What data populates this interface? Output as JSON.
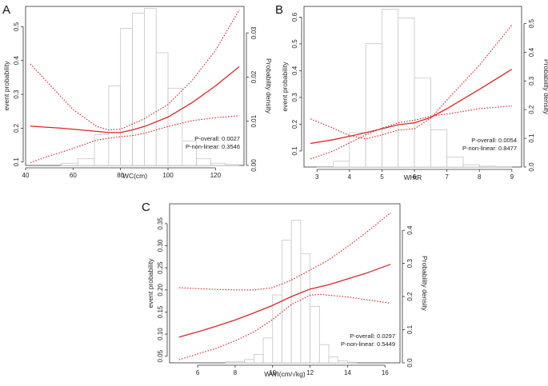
{
  "chart_data": [
    {
      "type": "line",
      "panel": "A",
      "xlabel": "WC(cm)",
      "ylabel": "event probability",
      "y2label": "Probability density",
      "xlim": [
        40,
        132
      ],
      "ylim": [
        0.09,
        0.56
      ],
      "y2lim": [
        0.0,
        0.036
      ],
      "xticks": [
        40,
        60,
        80,
        100,
        120
      ],
      "yticks": [
        0.1,
        0.2,
        0.3,
        0.4,
        0.5
      ],
      "y2ticks": [
        0.0,
        0.01,
        0.02,
        0.03
      ],
      "ytick_labels": [
        "0.1",
        "0.2",
        "0.3",
        "0.4",
        "0.5"
      ],
      "y2tick_labels": [
        "0.00",
        "0.01",
        "0.02",
        "0.03"
      ],
      "histogram": {
        "bin_edges": [
          55,
          62,
          69,
          75,
          80,
          85,
          90,
          95,
          100,
          106,
          112,
          118,
          124,
          130
        ],
        "density": [
          0.0005,
          0.0015,
          0.007,
          0.018,
          0.031,
          0.0345,
          0.0355,
          0.0255,
          0.0175,
          0.0055,
          0.0015,
          0.0005,
          0.0002
        ]
      },
      "series": [
        {
          "name": "fit",
          "x": [
            42,
            55,
            65,
            75,
            80,
            85,
            90,
            100,
            110,
            120,
            130
          ],
          "y": [
            0.206,
            0.2,
            0.194,
            0.187,
            0.187,
            0.195,
            0.205,
            0.233,
            0.275,
            0.325,
            0.382
          ]
        },
        {
          "name": "upper",
          "x": [
            42,
            50,
            60,
            70,
            75,
            80,
            85,
            90,
            100,
            110,
            120,
            130
          ],
          "y": [
            0.39,
            0.33,
            0.255,
            0.205,
            0.195,
            0.197,
            0.212,
            0.228,
            0.27,
            0.34,
            0.43,
            0.55
          ]
        },
        {
          "name": "lower",
          "x": [
            42,
            50,
            60,
            70,
            75,
            80,
            85,
            90,
            100,
            110,
            120,
            130
          ],
          "y": [
            0.098,
            0.118,
            0.14,
            0.165,
            0.17,
            0.175,
            0.178,
            0.185,
            0.205,
            0.222,
            0.231,
            0.237
          ]
        }
      ],
      "annotations": [
        "P-overall: 0.0027",
        "P-non-linear: 0.3546"
      ]
    },
    {
      "type": "line",
      "panel": "B",
      "xlabel": "WHtR",
      "ylabel": "event probability",
      "y2label": "Probability density",
      "xlim": [
        2.6,
        9.3
      ],
      "ylim": [
        0.04,
        0.64
      ],
      "y2lim": [
        0.0,
        0.56
      ],
      "xticks": [
        3,
        4,
        5,
        6,
        7,
        8,
        9
      ],
      "yticks": [
        0.1,
        0.2,
        0.3,
        0.4,
        0.5,
        0.6
      ],
      "y2ticks": [
        0.0,
        0.1,
        0.2,
        0.3,
        0.4,
        0.5
      ],
      "ytick_labels": [
        "0.1",
        "0.2",
        "0.3",
        "0.4",
        "0.5",
        "0.6"
      ],
      "y2tick_labels": [
        "0.0",
        "0.1",
        "0.2",
        "0.3",
        "0.4",
        "0.5"
      ],
      "histogram": {
        "bin_edges": [
          3.0,
          3.5,
          4.0,
          4.5,
          5.0,
          5.5,
          6.0,
          6.5,
          7.0,
          7.5,
          8.0,
          8.5,
          9.0
        ],
        "density": [
          0.002,
          0.02,
          0.12,
          0.43,
          0.55,
          0.52,
          0.31,
          0.13,
          0.035,
          0.008,
          0.003,
          0.001
        ]
      },
      "series": [
        {
          "name": "fit",
          "x": [
            2.8,
            3.5,
            4.0,
            4.5,
            5.0,
            5.5,
            6.0,
            6.5,
            7.0,
            8.0,
            9.0
          ],
          "y": [
            0.128,
            0.142,
            0.155,
            0.168,
            0.183,
            0.198,
            0.205,
            0.225,
            0.258,
            0.33,
            0.405
          ]
        },
        {
          "name": "upper",
          "x": [
            2.8,
            3.5,
            4.0,
            4.5,
            5.0,
            5.5,
            6.0,
            6.5,
            7.0,
            8.0,
            9.0
          ],
          "y": [
            0.22,
            0.185,
            0.158,
            0.145,
            0.16,
            0.178,
            0.183,
            0.222,
            0.29,
            0.42,
            0.57
          ]
        },
        {
          "name": "lower",
          "x": [
            2.8,
            3.5,
            4.0,
            4.5,
            5.0,
            5.5,
            6.0,
            6.5,
            7.0,
            8.0,
            9.0
          ],
          "y": [
            0.07,
            0.1,
            0.13,
            0.16,
            0.185,
            0.205,
            0.215,
            0.23,
            0.238,
            0.258,
            0.268
          ]
        }
      ],
      "annotations": [
        "P-overall: 0.0054",
        "P-non-linear: 0.8477"
      ]
    },
    {
      "type": "line",
      "panel": "C",
      "xlabel": "WWI(cm/√kg)",
      "ylabel": "event probability",
      "y2label": "Probability density",
      "xlim": [
        4.5,
        16.8
      ],
      "ylim": [
        0.035,
        0.395
      ],
      "y2lim": [
        0.0,
        0.48
      ],
      "xticks": [
        6,
        8,
        10,
        12,
        14,
        16
      ],
      "yticks": [
        0.05,
        0.1,
        0.15,
        0.2,
        0.25,
        0.3,
        0.35
      ],
      "y2ticks": [
        0.0,
        0.1,
        0.2,
        0.3,
        0.4
      ],
      "ytick_labels": [
        "0.05",
        "0.10",
        "0.15",
        "0.20",
        "0.25",
        "0.30",
        "0.35"
      ],
      "y2tick_labels": [
        "0.0",
        "0.1",
        "0.2",
        "0.3",
        "0.4"
      ],
      "histogram": {
        "bin_edges": [
          7.5,
          8.5,
          9.0,
          9.5,
          10.0,
          10.5,
          11.0,
          11.5,
          12.0,
          12.5,
          13.0,
          13.5,
          14.0,
          14.5
        ],
        "density": [
          0.003,
          0.01,
          0.025,
          0.075,
          0.205,
          0.37,
          0.43,
          0.33,
          0.17,
          0.055,
          0.018,
          0.006,
          0.002
        ]
      },
      "series": [
        {
          "name": "fit",
          "x": [
            5,
            6,
            7,
            8,
            9,
            10,
            11,
            12,
            13,
            14,
            15,
            16.3
          ],
          "y": [
            0.093,
            0.105,
            0.118,
            0.132,
            0.148,
            0.165,
            0.185,
            0.202,
            0.212,
            0.225,
            0.238,
            0.258
          ]
        },
        {
          "name": "upper",
          "x": [
            5,
            6,
            7,
            8,
            9,
            10,
            11,
            12,
            13,
            14,
            15,
            16.3
          ],
          "y": [
            0.205,
            0.203,
            0.201,
            0.2,
            0.2,
            0.205,
            0.222,
            0.245,
            0.268,
            0.298,
            0.33,
            0.375
          ]
        },
        {
          "name": "lower",
          "x": [
            5,
            6,
            7,
            8,
            9,
            10,
            11,
            12,
            12.5,
            13,
            14,
            15,
            16.3
          ],
          "y": [
            0.042,
            0.055,
            0.068,
            0.085,
            0.105,
            0.133,
            0.167,
            0.188,
            0.19,
            0.188,
            0.184,
            0.178,
            0.17
          ]
        }
      ],
      "annotations": [
        "P-overall: 0.0297",
        "P-non-linear: 0.5449"
      ]
    }
  ]
}
